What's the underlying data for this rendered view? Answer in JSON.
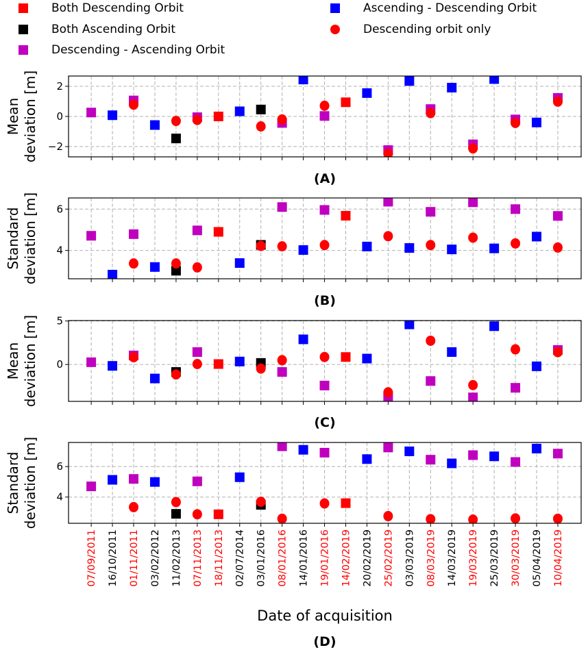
{
  "legend": [
    {
      "key": "redsq",
      "name": "Both Descending Orbit",
      "color": "#ff0000",
      "marker": "square"
    },
    {
      "key": "black",
      "name": "Both Ascending Orbit",
      "color": "#000000",
      "marker": "square"
    },
    {
      "key": "magenta",
      "name": "Descending - Ascending Orbit",
      "color": "#bf00bf",
      "marker": "square"
    },
    {
      "key": "blue",
      "name": "Ascending - Descending Orbit",
      "color": "#0000ff",
      "marker": "square"
    },
    {
      "key": "redc",
      "name": "Descending orbit only",
      "color": "#ff0000",
      "marker": "circle"
    }
  ],
  "xlabel": "Date of acquisition",
  "categories": [
    "07/09/2011",
    "16/10/2011",
    "01/11/2011",
    "03/02/2012",
    "11/02/2013",
    "07/11/2013",
    "18/11/2013",
    "02/07/2014",
    "03/01/2016",
    "08/01/2016",
    "14/01/2016",
    "19/01/2016",
    "14/02/2019",
    "20/02/2019",
    "25/02/2019",
    "03/03/2019",
    "08/03/2019",
    "14/03/2019",
    "19/03/2019",
    "25/03/2019",
    "30/03/2019",
    "05/04/2019",
    "10/04/2019"
  ],
  "category_colors": [
    "#ff0000",
    "#000000",
    "#ff0000",
    "#000000",
    "#000000",
    "#ff0000",
    "#ff0000",
    "#000000",
    "#000000",
    "#ff0000",
    "#000000",
    "#ff0000",
    "#ff0000",
    "#000000",
    "#ff0000",
    "#000000",
    "#ff0000",
    "#000000",
    "#ff0000",
    "#000000",
    "#ff0000",
    "#000000",
    "#ff0000"
  ],
  "chart_data": [
    {
      "type": "scatter",
      "label": "(A)",
      "ylabel": [
        "Mean",
        "deviation [m]"
      ],
      "ylim": [
        -2.68,
        2.68
      ],
      "yticks": [
        -2,
        0,
        2
      ],
      "series": {
        "blue": [
          [
            1,
            0.08
          ],
          [
            3,
            -0.57
          ],
          [
            7,
            0.34
          ],
          [
            10,
            2.45
          ],
          [
            13,
            1.55
          ],
          [
            15,
            2.35
          ],
          [
            17,
            1.91
          ],
          [
            19,
            2.48
          ],
          [
            21,
            -0.4
          ]
        ],
        "magenta": [
          [
            0,
            0.26
          ],
          [
            2,
            1.06
          ],
          [
            5,
            -0.05
          ],
          [
            9,
            -0.43
          ],
          [
            11,
            0.03
          ],
          [
            14,
            -2.23
          ],
          [
            16,
            0.49
          ],
          [
            18,
            -1.85
          ],
          [
            20,
            -0.2
          ],
          [
            22,
            1.23
          ]
        ],
        "black": [
          [
            4,
            -1.46
          ],
          [
            8,
            0.46
          ]
        ],
        "redsq": [
          [
            6,
            0.0
          ],
          [
            12,
            0.94
          ]
        ],
        "redc": [
          [
            2,
            0.78
          ],
          [
            4,
            -0.3
          ],
          [
            5,
            -0.23
          ],
          [
            8,
            -0.66
          ],
          [
            9,
            -0.2
          ],
          [
            11,
            0.71
          ],
          [
            14,
            -2.48
          ],
          [
            16,
            0.22
          ],
          [
            18,
            -2.12
          ],
          [
            20,
            -0.43
          ],
          [
            22,
            0.98
          ]
        ]
      }
    },
    {
      "type": "scatter",
      "label": "(B)",
      "ylabel": [
        "Standard",
        "deviation [m]"
      ],
      "ylim": [
        2.63,
        6.54
      ],
      "yticks": [
        4,
        6
      ],
      "series": {
        "blue": [
          [
            1,
            2.83
          ],
          [
            3,
            3.2
          ],
          [
            7,
            3.39
          ],
          [
            10,
            4.02
          ],
          [
            13,
            4.19
          ],
          [
            15,
            4.12
          ],
          [
            17,
            4.05
          ],
          [
            19,
            4.1
          ],
          [
            21,
            4.67
          ]
        ],
        "magenta": [
          [
            0,
            4.71
          ],
          [
            2,
            4.79
          ],
          [
            5,
            4.97
          ],
          [
            9,
            6.1
          ],
          [
            11,
            5.96
          ],
          [
            14,
            6.36
          ],
          [
            16,
            5.87
          ],
          [
            18,
            6.33
          ],
          [
            20,
            6.0
          ],
          [
            22,
            5.67
          ]
        ],
        "black": [
          [
            4,
            3.02
          ],
          [
            8,
            4.27
          ]
        ],
        "redsq": [
          [
            6,
            4.9
          ],
          [
            12,
            5.68
          ]
        ],
        "redc": [
          [
            2,
            3.37
          ],
          [
            4,
            3.37
          ],
          [
            5,
            3.18
          ],
          [
            8,
            4.22
          ],
          [
            9,
            4.2
          ],
          [
            11,
            4.26
          ],
          [
            14,
            4.69
          ],
          [
            16,
            4.26
          ],
          [
            18,
            4.62
          ],
          [
            20,
            4.34
          ],
          [
            22,
            4.14
          ]
        ]
      }
    },
    {
      "type": "scatter",
      "label": "(C)",
      "ylabel": [
        "Mean",
        "deviation [m]"
      ],
      "ylim": [
        -4.24,
        5.05
      ],
      "yticks": [
        0,
        5
      ],
      "series": {
        "blue": [
          [
            1,
            -0.16
          ],
          [
            3,
            -1.61
          ],
          [
            7,
            0.34
          ],
          [
            10,
            2.89
          ],
          [
            13,
            0.68
          ],
          [
            15,
            4.61
          ],
          [
            17,
            1.43
          ],
          [
            19,
            4.4
          ],
          [
            21,
            -0.21
          ]
        ],
        "magenta": [
          [
            0,
            0.26
          ],
          [
            2,
            1.04
          ],
          [
            5,
            1.43
          ],
          [
            9,
            -0.86
          ],
          [
            11,
            -2.42
          ],
          [
            14,
            -3.72
          ],
          [
            16,
            -1.9
          ],
          [
            18,
            -3.78
          ],
          [
            20,
            -2.68
          ],
          [
            22,
            1.67
          ]
        ],
        "black": [
          [
            4,
            -0.86
          ],
          [
            8,
            0.18
          ]
        ],
        "redsq": [
          [
            6,
            0.05
          ],
          [
            12,
            0.86
          ]
        ],
        "redc": [
          [
            2,
            0.83
          ],
          [
            4,
            -1.15
          ],
          [
            5,
            0.05
          ],
          [
            8,
            -0.47
          ],
          [
            9,
            0.49
          ],
          [
            11,
            0.86
          ],
          [
            14,
            -3.2
          ],
          [
            16,
            2.73
          ],
          [
            18,
            -2.37
          ],
          [
            20,
            1.74
          ],
          [
            22,
            1.41
          ]
        ]
      }
    },
    {
      "type": "scatter",
      "label": "(D)",
      "ylabel": [
        "Standard",
        "deviation [m]"
      ],
      "ylim": [
        2.28,
        7.58
      ],
      "yticks": [
        4,
        6
      ],
      "series": {
        "blue": [
          [
            1,
            5.13
          ],
          [
            3,
            4.99
          ],
          [
            7,
            5.3
          ],
          [
            10,
            7.1
          ],
          [
            13,
            6.49
          ],
          [
            15,
            7.0
          ],
          [
            17,
            6.21
          ],
          [
            19,
            6.67
          ],
          [
            21,
            7.18
          ]
        ],
        "magenta": [
          [
            0,
            4.7
          ],
          [
            2,
            5.19
          ],
          [
            5,
            5.03
          ],
          [
            9,
            7.33
          ],
          [
            11,
            6.91
          ],
          [
            14,
            7.25
          ],
          [
            16,
            6.45
          ],
          [
            18,
            6.75
          ],
          [
            20,
            6.3
          ],
          [
            22,
            6.85
          ]
        ],
        "black": [
          [
            4,
            2.9
          ],
          [
            8,
            3.49
          ]
        ],
        "redsq": [
          [
            6,
            2.87
          ],
          [
            12,
            3.6
          ]
        ],
        "redc": [
          [
            2,
            3.34
          ],
          [
            4,
            3.67
          ],
          [
            5,
            2.87
          ],
          [
            8,
            3.69
          ],
          [
            9,
            2.58
          ],
          [
            11,
            3.58
          ],
          [
            14,
            2.75
          ],
          [
            16,
            2.55
          ],
          [
            18,
            2.52
          ],
          [
            20,
            2.6
          ],
          [
            22,
            2.58
          ]
        ]
      }
    }
  ]
}
